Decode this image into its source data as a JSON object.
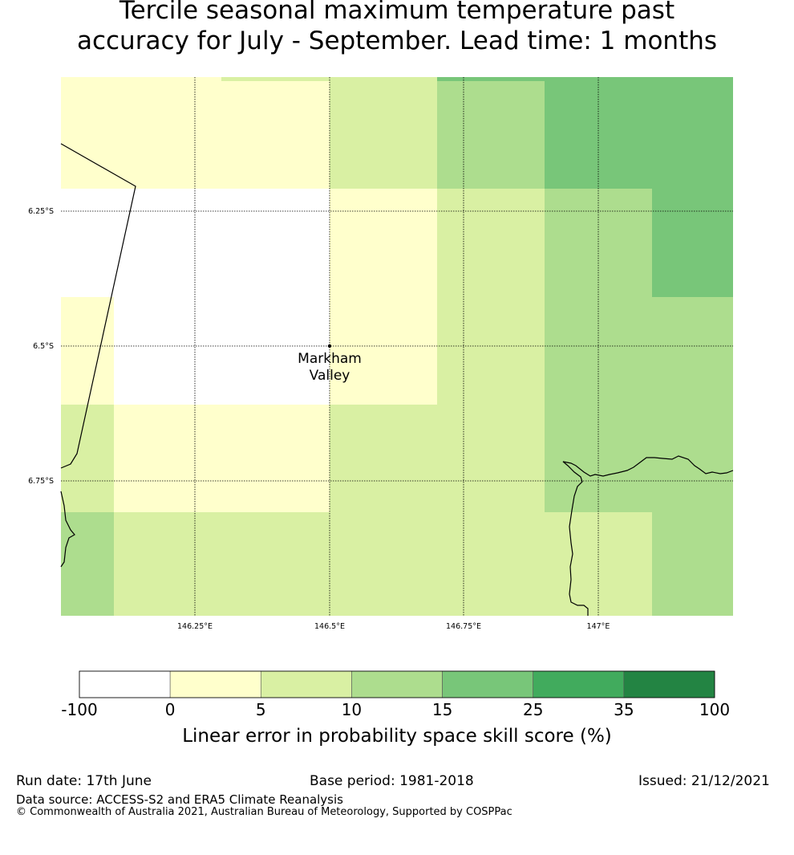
{
  "title": {
    "line1": "Tercile seasonal maximum temperature past",
    "line2": "accuracy for July - September. Lead time: 1 months"
  },
  "map": {
    "lon_ticks": [
      "146.25°E",
      "146.5°E",
      "146.75°E",
      "147°E"
    ],
    "lat_ticks": [
      "6.25°S",
      "6.5°S",
      "6.75°S"
    ],
    "location": {
      "name_line1": "Markham",
      "name_line2": "Valley"
    }
  },
  "colorbar": {
    "bin_edges": [
      "-100",
      "0",
      "5",
      "10",
      "15",
      "25",
      "35",
      "100"
    ],
    "colors": [
      "#ffffff",
      "#ffffcc",
      "#d9f0a3",
      "#addd8e",
      "#78c679",
      "#41ab5d",
      "#238443"
    ],
    "label": "Linear error in probability space skill score (%)"
  },
  "footer": {
    "run_date": "Run date: 17th June",
    "base_period": "Base period: 1981-2018",
    "issued": "Issued: 21/12/2021",
    "data_source": "Data source: ACCESS-S2 and ERA5 Climate Reanalysis",
    "copyright": "© Commonwealth of Australia 2021, Australian Bureau of Meteorology, Supported by COSPPac"
  }
}
